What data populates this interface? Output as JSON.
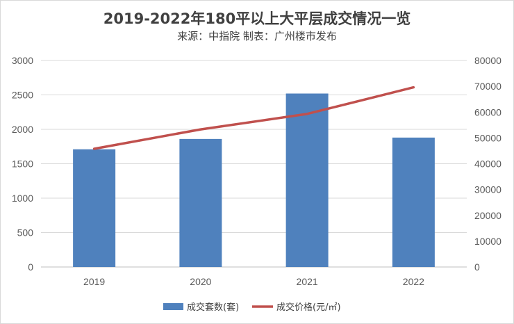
{
  "chart_data": {
    "type": "bar",
    "title": "2019-2022年180平以上大平层成交情况一览",
    "subtitle": "来源：中指院  制表：广州楼市发布",
    "categories": [
      "2019",
      "2020",
      "2021",
      "2022"
    ],
    "series": [
      {
        "name": "成交套数(套)",
        "type": "bar",
        "axis": "left",
        "values": [
          1710,
          1860,
          2520,
          1880
        ],
        "color": "#4F81BD"
      },
      {
        "name": "成交价格(元/㎡)",
        "type": "line",
        "axis": "right",
        "values": [
          45800,
          53300,
          59300,
          69600
        ],
        "color": "#C0504D"
      }
    ],
    "y_left": {
      "min": 0,
      "max": 3000,
      "ticks": [
        "0",
        "500",
        "1000",
        "1500",
        "2000",
        "2500",
        "3000"
      ]
    },
    "y_right": {
      "min": 0,
      "max": 80000,
      "ticks": [
        "0",
        "10000",
        "20000",
        "30000",
        "40000",
        "50000",
        "60000",
        "70000",
        "80000"
      ]
    },
    "grid": true,
    "legend_position": "bottom"
  }
}
